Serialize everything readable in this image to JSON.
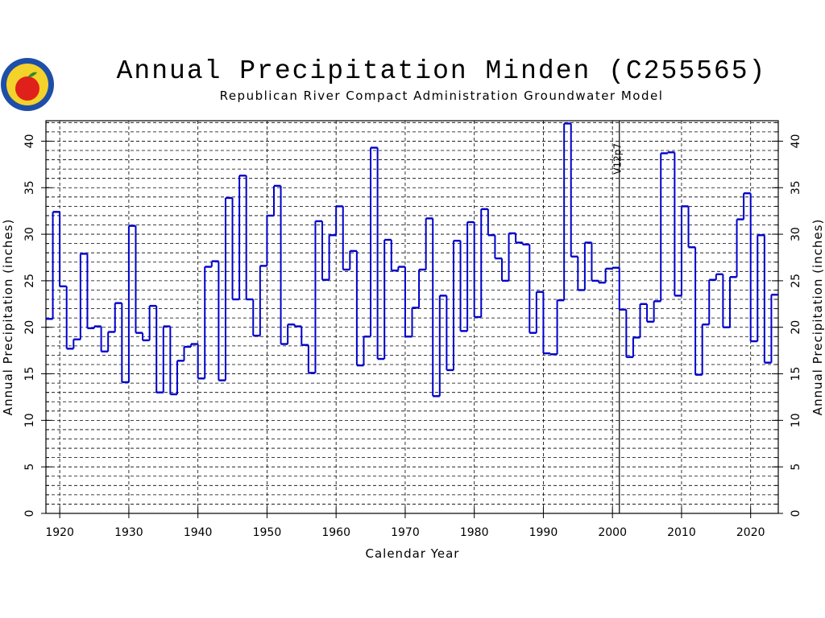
{
  "chart_data": {
    "type": "step",
    "title": "Annual Precipitation Minden (C255565)",
    "subtitle": "Republican River Compact Administration Groundwater Model",
    "xlabel": "Calendar Year",
    "ylabel": "Annual Precipitation (inches)",
    "x": [
      1918,
      1919,
      1920,
      1921,
      1922,
      1923,
      1924,
      1925,
      1926,
      1927,
      1928,
      1929,
      1930,
      1931,
      1932,
      1933,
      1934,
      1935,
      1936,
      1937,
      1938,
      1939,
      1940,
      1941,
      1942,
      1943,
      1944,
      1945,
      1946,
      1947,
      1948,
      1949,
      1950,
      1951,
      1952,
      1953,
      1954,
      1955,
      1956,
      1957,
      1958,
      1959,
      1960,
      1961,
      1962,
      1963,
      1964,
      1965,
      1966,
      1967,
      1968,
      1969,
      1970,
      1971,
      1972,
      1973,
      1974,
      1975,
      1976,
      1977,
      1978,
      1979,
      1980,
      1981,
      1982,
      1983,
      1984,
      1985,
      1986,
      1987,
      1988,
      1989,
      1990,
      1991,
      1992,
      1993,
      1994,
      1995,
      1996,
      1997,
      1998,
      1999,
      2000,
      2001,
      2002,
      2003,
      2004,
      2005,
      2006,
      2007,
      2008,
      2009,
      2010,
      2011,
      2012,
      2013,
      2014,
      2015,
      2016,
      2017,
      2018,
      2019,
      2020,
      2021,
      2022,
      2023
    ],
    "series": [
      {
        "name": "Annual Precipitation",
        "color": "#0000cc",
        "values": [
          20.9,
          32.4,
          24.4,
          17.7,
          18.7,
          27.9,
          19.9,
          20.1,
          17.4,
          19.5,
          22.6,
          14.1,
          30.9,
          19.4,
          18.6,
          22.3,
          13.0,
          20.1,
          12.8,
          16.4,
          17.9,
          18.2,
          14.5,
          26.5,
          27.1,
          14.3,
          33.9,
          23.0,
          36.3,
          23.0,
          19.1,
          26.6,
          32.0,
          35.2,
          18.2,
          20.3,
          20.1,
          18.1,
          15.1,
          31.4,
          25.1,
          29.9,
          33.0,
          26.2,
          28.2,
          15.9,
          19.0,
          39.3,
          16.6,
          29.4,
          26.1,
          26.5,
          19.0,
          22.1,
          26.2,
          31.7,
          12.6,
          23.4,
          15.4,
          29.3,
          19.6,
          31.3,
          21.1,
          32.7,
          29.9,
          27.4,
          25.0,
          30.1,
          29.1,
          28.9,
          19.4,
          23.8,
          17.2,
          17.1,
          22.9,
          41.9,
          27.6,
          24.0,
          29.1,
          25.0,
          24.8,
          26.3,
          26.4,
          21.9,
          16.8,
          18.9,
          22.5,
          20.6,
          22.8,
          38.7,
          38.8,
          23.4,
          33.0,
          28.6,
          14.9,
          20.3,
          25.1,
          25.7,
          20.0,
          25.4,
          31.6,
          34.4,
          18.5,
          29.9,
          16.2,
          23.5
        ]
      }
    ],
    "xlim": [
      1918,
      2024
    ],
    "xticks": [
      1920,
      1930,
      1940,
      1950,
      1960,
      1970,
      1980,
      1990,
      2000,
      2010,
      2020
    ],
    "ylim": [
      0,
      42.2
    ],
    "yticks": [
      0,
      5,
      10,
      15,
      20,
      25,
      30,
      35,
      40
    ],
    "yminorticks": [
      0,
      1,
      2,
      3,
      4,
      5,
      6,
      7,
      8,
      9,
      10,
      11,
      12,
      13,
      14,
      15,
      16,
      17,
      18,
      19,
      20,
      21,
      22,
      23,
      24,
      25,
      26,
      27,
      28,
      29,
      30,
      31,
      32,
      33,
      34,
      35,
      36,
      37,
      38,
      39,
      40,
      41,
      42
    ],
    "grid": true,
    "annotations": [
      {
        "x": 2001,
        "label": "V12p7"
      }
    ]
  }
}
